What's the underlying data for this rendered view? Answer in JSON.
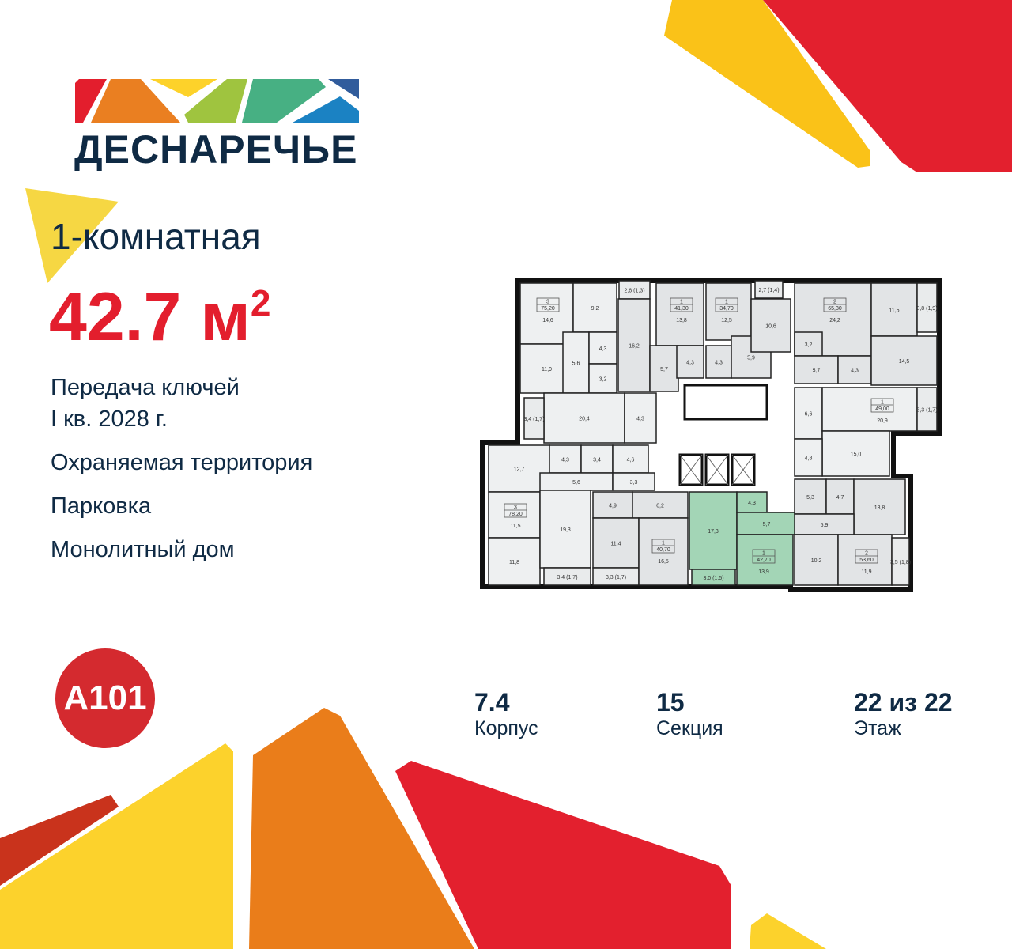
{
  "brand": {
    "name": "ДЕСНАРЕЧЬЕ",
    "developer_logo": "A101",
    "logo_colors": [
      "#e31e2d",
      "#ea7f21",
      "#fdd22a",
      "#9fc43f",
      "#47b083",
      "#1b82c3",
      "#315c9c"
    ]
  },
  "listing": {
    "type": "1-комнатная",
    "area_value": "42.7 м",
    "area_sup": "2",
    "handover_line1": "Передача ключей",
    "handover_line2": "I кв. 2028 г.",
    "features": [
      "Охраняемая территория",
      "Парковка",
      "Монолитный дом"
    ]
  },
  "stats": [
    {
      "value": "7.4",
      "label": "Корпус"
    },
    {
      "value": "15",
      "label": "Секция"
    },
    {
      "value": "22 из 22",
      "label": "Этаж"
    }
  ],
  "colors": {
    "accent_red": "#e31e2d",
    "text_navy": "#0f2a44",
    "highlight_green": "#a3d5b6",
    "room_grey": "#e2e4e6",
    "room_light": "#eef0f1",
    "wall": "#111111"
  },
  "floorplan": {
    "apartments": [
      {
        "rooms": "3",
        "area": "75,20"
      },
      {
        "rooms": "1",
        "area": "41,30"
      },
      {
        "rooms": "1",
        "area": "34,70"
      },
      {
        "rooms": "2",
        "area": "65,30"
      },
      {
        "rooms": "1",
        "area": "49,00"
      },
      {
        "rooms": "3",
        "area": "78,20"
      },
      {
        "rooms": "1",
        "area": "40,70"
      },
      {
        "rooms": "1",
        "area": "42,70",
        "highlighted": true
      },
      {
        "rooms": "2",
        "area": "53,60"
      }
    ],
    "rooms": [
      "14,6",
      "11,9",
      "9,2",
      "5,6",
      "4,3",
      "3,2",
      "20,4",
      "4,3",
      "3,4 (1,7)",
      "2,6 (1,3)",
      "16,2",
      "13,8",
      "5,7",
      "4,3",
      "12,5",
      "4,3",
      "5,9",
      "10,6",
      "2,7 (1,4)",
      "24,2",
      "3,2",
      "5,7",
      "4,3",
      "11,5",
      "14,5",
      "3,8 (1,9)",
      "6,6",
      "20,9",
      "3,3 (1,7)",
      "15,0",
      "4,8",
      "12,7",
      "4,3",
      "3,4",
      "4,6",
      "5,6",
      "3,3",
      "11,5",
      "11,8",
      "19,3",
      "3,4 (1,7)",
      "4,9",
      "6,2",
      "11,4",
      "3,3 (1,7)",
      "16,5",
      "17,3",
      "4,3",
      "5,7",
      "13,9",
      "3,0 (1,5)",
      "5,3",
      "4,7",
      "13,8",
      "5,9",
      "10,2",
      "11,9",
      "3,5 (1,8)"
    ]
  }
}
